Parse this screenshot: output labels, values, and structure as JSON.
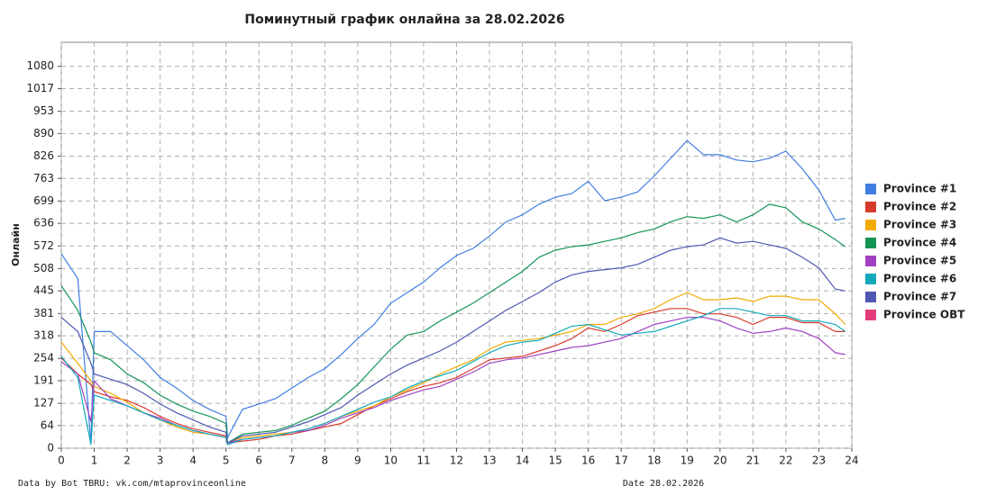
{
  "chart_data": {
    "type": "line",
    "title": "Поминутный график онлайна за 28.02.2026",
    "y_label": "Онлайн",
    "footer_left": "Data by Bot TBRU: vk.com/mtaprovinceonline",
    "footer_center": "Date 28.02.2026",
    "xlim": [
      0,
      24
    ],
    "xticks": [
      0,
      1,
      2,
      3,
      4,
      5,
      6,
      7,
      8,
      9,
      10,
      11,
      12,
      13,
      14,
      15,
      16,
      17,
      18,
      19,
      20,
      21,
      22,
      23,
      24
    ],
    "ylim": [
      0,
      1148
    ],
    "yticks": [
      0,
      64,
      127,
      191,
      254,
      318,
      381,
      445,
      508,
      572,
      636,
      699,
      763,
      826,
      890,
      953,
      1017,
      1080
    ],
    "grid": true,
    "legend": "right",
    "x": [
      0,
      0.5,
      0.9,
      1,
      1.5,
      2,
      2.5,
      3,
      3.5,
      4,
      4.5,
      5,
      5.05,
      5.5,
      6,
      6.5,
      7,
      7.5,
      8,
      8.5,
      9,
      9.5,
      10,
      10.5,
      11,
      11.5,
      12,
      12.5,
      13,
      13.5,
      14,
      14.5,
      15,
      15.5,
      16,
      16.5,
      17,
      17.5,
      18,
      18.5,
      19,
      19.5,
      20,
      20.5,
      21,
      21.5,
      22,
      22.5,
      23,
      23.5,
      23.8
    ],
    "series": [
      {
        "name": "Province #1",
        "color": "#3f7ee0",
        "values": [
          550,
          480,
          15,
          330,
          330,
          290,
          250,
          200,
          170,
          135,
          110,
          90,
          30,
          110,
          125,
          140,
          170,
          200,
          225,
          265,
          310,
          350,
          410,
          440,
          470,
          510,
          545,
          565,
          600,
          640,
          660,
          690,
          710,
          720,
          755,
          700,
          710,
          725,
          770,
          820,
          870,
          830,
          830,
          815,
          810,
          820,
          840,
          790,
          730,
          645,
          650
        ]
      },
      {
        "name": "Province #2",
        "color": "#d63a2c",
        "values": [
          255,
          210,
          180,
          160,
          145,
          135,
          115,
          90,
          70,
          55,
          45,
          35,
          15,
          20,
          25,
          35,
          40,
          50,
          60,
          70,
          95,
          120,
          140,
          160,
          175,
          185,
          200,
          225,
          250,
          255,
          260,
          275,
          290,
          310,
          340,
          330,
          350,
          375,
          385,
          395,
          395,
          380,
          380,
          370,
          350,
          370,
          370,
          355,
          355,
          330,
          330
        ]
      },
      {
        "name": "Province #3",
        "color": "#f2aa00",
        "values": [
          300,
          240,
          190,
          175,
          155,
          130,
          100,
          80,
          60,
          45,
          40,
          30,
          15,
          30,
          35,
          40,
          45,
          55,
          70,
          90,
          105,
          120,
          145,
          165,
          185,
          210,
          230,
          250,
          280,
          300,
          305,
          310,
          320,
          330,
          350,
          350,
          370,
          380,
          395,
          420,
          440,
          420,
          420,
          425,
          415,
          430,
          430,
          420,
          420,
          380,
          350
        ]
      },
      {
        "name": "Province #4",
        "color": "#159456",
        "values": [
          460,
          390,
          300,
          270,
          250,
          210,
          185,
          150,
          125,
          105,
          90,
          70,
          15,
          40,
          45,
          50,
          65,
          85,
          105,
          140,
          180,
          230,
          280,
          320,
          330,
          360,
          385,
          410,
          440,
          470,
          500,
          540,
          560,
          570,
          575,
          585,
          595,
          610,
          620,
          640,
          655,
          650,
          660,
          640,
          660,
          690,
          680,
          640,
          620,
          590,
          570
        ]
      },
      {
        "name": "Province #5",
        "color": "#a040c0",
        "values": [
          245,
          210,
          75,
          190,
          140,
          120,
          100,
          85,
          65,
          50,
          40,
          30,
          15,
          25,
          30,
          35,
          45,
          50,
          65,
          85,
          100,
          115,
          135,
          150,
          165,
          175,
          195,
          215,
          240,
          250,
          255,
          265,
          275,
          285,
          290,
          300,
          310,
          330,
          350,
          360,
          370,
          370,
          360,
          340,
          325,
          330,
          340,
          330,
          310,
          270,
          265
        ]
      },
      {
        "name": "Province #6",
        "color": "#12a9bb",
        "values": [
          260,
          200,
          10,
          150,
          135,
          120,
          100,
          80,
          65,
          50,
          40,
          30,
          10,
          25,
          30,
          35,
          45,
          55,
          70,
          90,
          110,
          130,
          145,
          170,
          190,
          205,
          220,
          245,
          270,
          290,
          300,
          305,
          325,
          345,
          350,
          335,
          320,
          325,
          330,
          345,
          360,
          375,
          395,
          395,
          385,
          375,
          375,
          360,
          360,
          350,
          330
        ]
      },
      {
        "name": "Province #7",
        "color": "#4f58b3",
        "values": [
          370,
          330,
          240,
          210,
          195,
          180,
          155,
          125,
          100,
          80,
          60,
          45,
          15,
          35,
          40,
          45,
          60,
          75,
          95,
          115,
          150,
          180,
          210,
          235,
          255,
          275,
          300,
          330,
          360,
          390,
          415,
          440,
          470,
          490,
          500,
          505,
          510,
          520,
          540,
          560,
          570,
          575,
          595,
          580,
          585,
          575,
          565,
          540,
          510,
          450,
          445
        ]
      },
      {
        "name": "Province OBT",
        "color": "#e23c7c",
        "values": [
          null,
          null,
          null,
          null,
          null,
          null,
          null,
          null,
          null,
          null,
          null,
          null,
          null,
          null,
          null,
          null,
          null,
          null,
          null,
          null,
          null,
          null,
          null,
          null,
          null,
          null,
          null,
          null,
          null,
          null,
          null,
          null,
          null,
          null,
          null,
          null,
          null,
          null,
          null,
          null,
          null,
          null,
          null,
          null,
          null,
          null,
          null,
          null,
          null,
          null,
          null
        ]
      }
    ]
  }
}
